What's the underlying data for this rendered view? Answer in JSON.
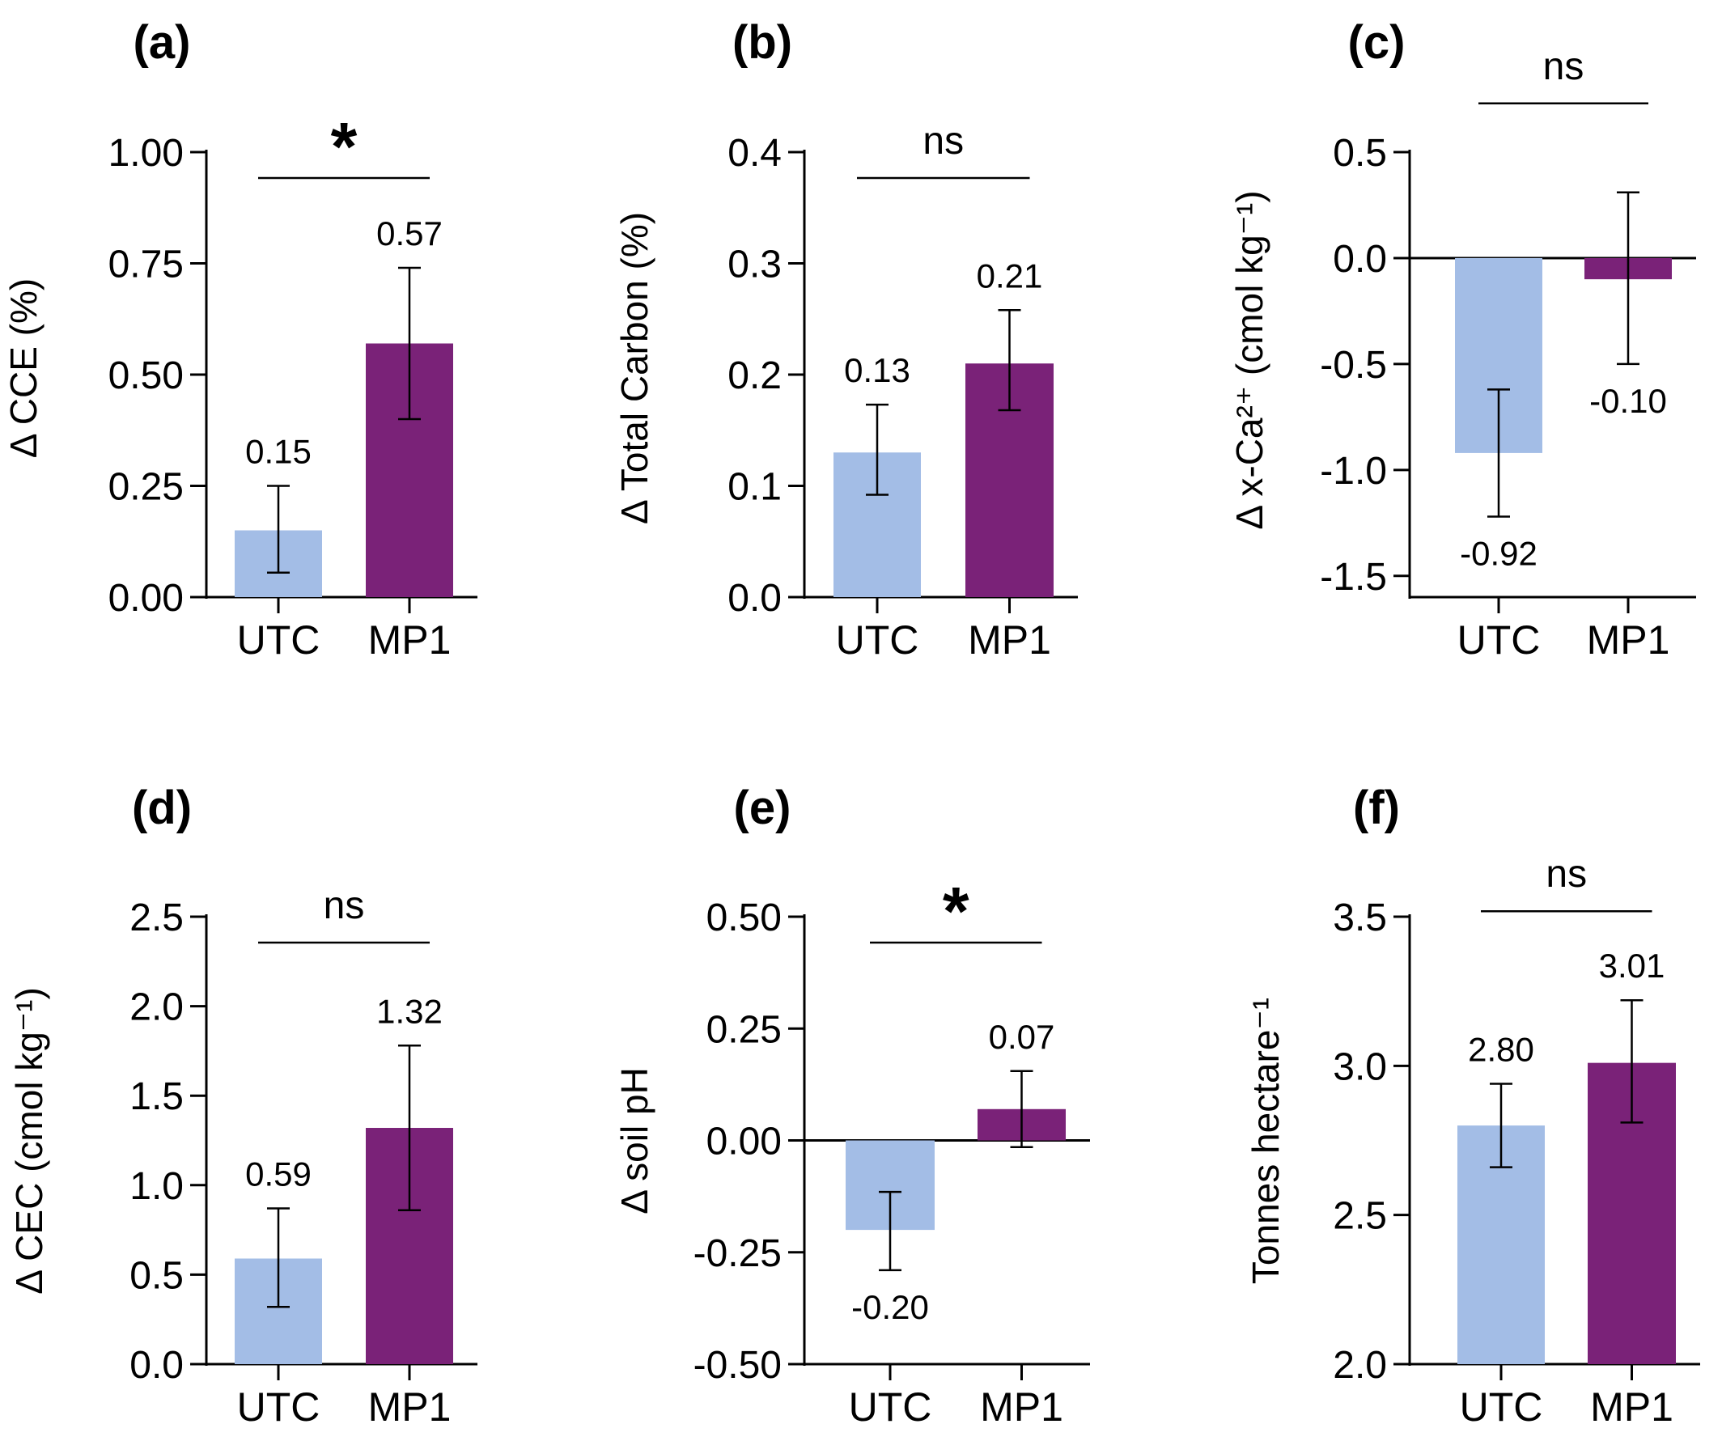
{
  "colors": {
    "utc": "#a3bde6",
    "mp1": "#7a2278",
    "axis": "#000000"
  },
  "chart_data": [
    {
      "type": "bar",
      "panel_label": "(a)",
      "ylabel": "Δ CCE (%)",
      "categories": [
        "UTC",
        "MP1"
      ],
      "values": [
        0.15,
        0.57
      ],
      "value_labels": [
        "0.15",
        "0.57"
      ],
      "error_low": [
        0.055,
        0.4
      ],
      "error_high": [
        0.25,
        0.74
      ],
      "ylim": [
        0,
        1
      ],
      "yticks": [
        0,
        0.25,
        0.5,
        0.75,
        1.0
      ],
      "ytick_labels": [
        "0.00",
        "0.25",
        "0.50",
        "0.75",
        "1.00"
      ],
      "significance": "*"
    },
    {
      "type": "bar",
      "panel_label": "(b)",
      "ylabel": "Δ Total Carbon (%)",
      "categories": [
        "UTC",
        "MP1"
      ],
      "values": [
        0.13,
        0.21
      ],
      "value_labels": [
        "0.13",
        "0.21"
      ],
      "error_low": [
        0.092,
        0.168
      ],
      "error_high": [
        0.173,
        0.258
      ],
      "ylim": [
        0,
        0.4
      ],
      "yticks": [
        0,
        0.1,
        0.2,
        0.3,
        0.4
      ],
      "ytick_labels": [
        "0.0",
        "0.1",
        "0.2",
        "0.3",
        "0.4"
      ],
      "significance": "ns"
    },
    {
      "type": "bar",
      "panel_label": "(c)",
      "ylabel": "Δ x-Ca²⁺ (cmol kg⁻¹)",
      "categories": [
        "UTC",
        "MP1"
      ],
      "values": [
        -0.92,
        -0.1
      ],
      "value_labels": [
        "-0.92",
        "-0.10"
      ],
      "error_low": [
        -1.22,
        -0.5
      ],
      "error_high": [
        -0.62,
        0.31
      ],
      "ylim": [
        -1.6,
        0.5
      ],
      "yticks": [
        -1.5,
        -1.0,
        -0.5,
        0.0,
        0.5
      ],
      "ytick_labels": [
        "-1.5",
        "-1.0",
        "-0.5",
        "0.0",
        "0.5"
      ],
      "significance": "ns"
    },
    {
      "type": "bar",
      "panel_label": "(d)",
      "ylabel": "Δ CEC (cmol kg⁻¹)",
      "categories": [
        "UTC",
        "MP1"
      ],
      "values": [
        0.59,
        1.32
      ],
      "value_labels": [
        "0.59",
        "1.32"
      ],
      "error_low": [
        0.32,
        0.86
      ],
      "error_high": [
        0.87,
        1.78
      ],
      "ylim": [
        0,
        2.5
      ],
      "yticks": [
        0,
        0.5,
        1.0,
        1.5,
        2.0,
        2.5
      ],
      "ytick_labels": [
        "0.0",
        "0.5",
        "1.0",
        "1.5",
        "2.0",
        "2.5"
      ],
      "significance": "ns"
    },
    {
      "type": "bar",
      "panel_label": "(e)",
      "ylabel": "Δ soil pH",
      "categories": [
        "UTC",
        "MP1"
      ],
      "values": [
        -0.2,
        0.07
      ],
      "value_labels": [
        "-0.20",
        "0.07"
      ],
      "error_low": [
        -0.29,
        -0.015
      ],
      "error_high": [
        -0.115,
        0.155
      ],
      "ylim": [
        -0.5,
        0.5
      ],
      "yticks": [
        -0.5,
        -0.25,
        0,
        0.25,
        0.5
      ],
      "ytick_labels": [
        "-0.50",
        "-0.25",
        "0.00",
        "0.25",
        "0.50"
      ],
      "significance": "*"
    },
    {
      "type": "bar",
      "panel_label": "(f)",
      "ylabel": "Tonnes hectare⁻¹",
      "categories": [
        "UTC",
        "MP1"
      ],
      "values": [
        2.8,
        3.01
      ],
      "value_labels": [
        "2.80",
        "3.01"
      ],
      "error_low": [
        2.66,
        2.81
      ],
      "error_high": [
        2.94,
        3.22
      ],
      "ylim": [
        2.0,
        3.5
      ],
      "yticks": [
        2.0,
        2.5,
        3.0,
        3.5
      ],
      "ytick_labels": [
        "2.0",
        "2.5",
        "3.0",
        "3.5"
      ],
      "significance": "ns"
    }
  ]
}
